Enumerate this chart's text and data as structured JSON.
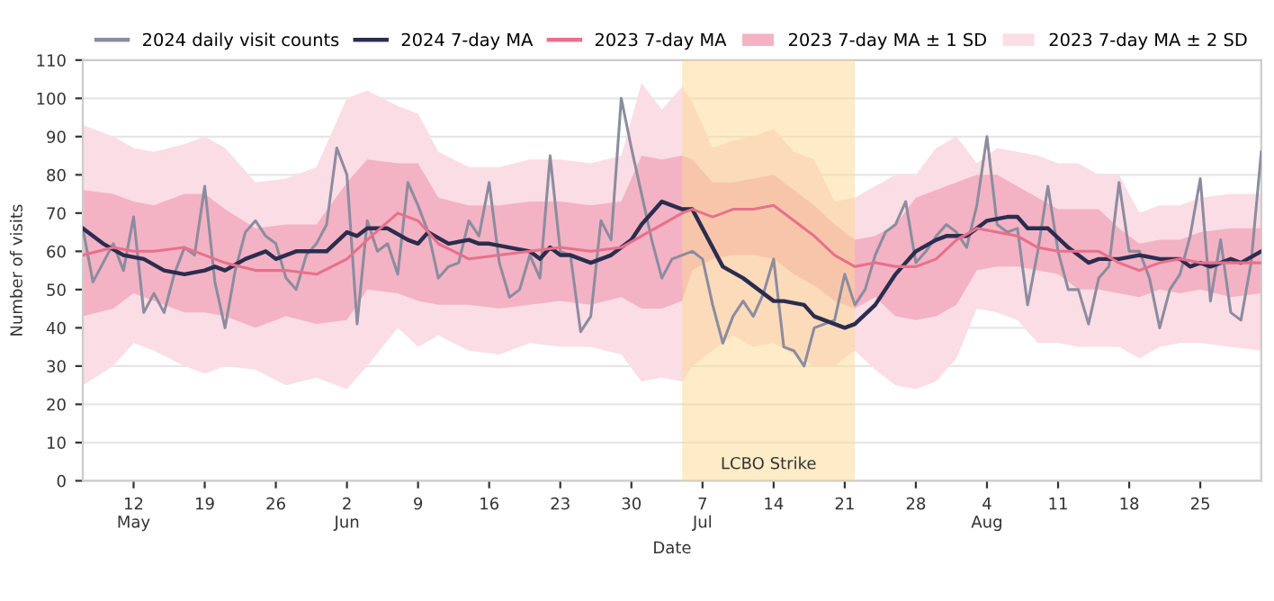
{
  "chart_data": {
    "type": "line",
    "xlabel": "Date",
    "ylabel": "Number of visits",
    "xlim": [
      "2024-05-07",
      "2024-08-31"
    ],
    "ylim": [
      0,
      110
    ],
    "yticks": [
      0,
      10,
      20,
      30,
      40,
      50,
      60,
      70,
      80,
      90,
      100,
      110
    ],
    "xticks": [
      {
        "value": "2024-05-12",
        "label": "12\nMay"
      },
      {
        "value": "2024-05-19",
        "label": "19"
      },
      {
        "value": "2024-05-26",
        "label": "26"
      },
      {
        "value": "2024-06-02",
        "label": "2\nJun"
      },
      {
        "value": "2024-06-09",
        "label": "9"
      },
      {
        "value": "2024-06-16",
        "label": "16"
      },
      {
        "value": "2024-06-23",
        "label": "23"
      },
      {
        "value": "2024-06-30",
        "label": "30"
      },
      {
        "value": "2024-07-07",
        "label": "7\nJul"
      },
      {
        "value": "2024-07-14",
        "label": "14"
      },
      {
        "value": "2024-07-21",
        "label": "21"
      },
      {
        "value": "2024-07-28",
        "label": "28"
      },
      {
        "value": "2024-08-04",
        "label": "4\nAug"
      },
      {
        "value": "2024-08-11",
        "label": "11"
      },
      {
        "value": "2024-08-18",
        "label": "18"
      },
      {
        "value": "2024-08-25",
        "label": "25"
      }
    ],
    "grid": "y",
    "legend": "top",
    "marker": "none",
    "line_style": "solid",
    "bands": [
      {
        "axis": "x",
        "from": "2024-07-05",
        "to": "2024-07-22",
        "label": "LCBO Strike",
        "color": "#fcd98f"
      }
    ],
    "series": [
      {
        "name": "2023 7-day MA ± 2 SD",
        "type": "line",
        "color": "#fbdde5",
        "x": [
          "2024-05-07",
          "2024-05-10",
          "2024-05-12",
          "2024-05-14",
          "2024-05-17",
          "2024-05-19",
          "2024-05-21",
          "2024-05-24",
          "2024-05-27",
          "2024-05-30",
          "2024-06-02",
          "2024-06-04",
          "2024-06-07",
          "2024-06-09",
          "2024-06-11",
          "2024-06-14",
          "2024-06-17",
          "2024-06-20",
          "2024-06-23",
          "2024-06-26",
          "2024-06-29",
          "2024-07-01",
          "2024-07-03",
          "2024-07-05",
          "2024-07-06",
          "2024-07-08",
          "2024-07-10",
          "2024-07-12",
          "2024-07-14",
          "2024-07-16",
          "2024-07-18",
          "2024-07-20",
          "2024-07-22",
          "2024-07-24",
          "2024-07-26",
          "2024-07-28",
          "2024-07-30",
          "2024-08-01",
          "2024-08-03",
          "2024-08-05",
          "2024-08-07",
          "2024-08-09",
          "2024-08-11",
          "2024-08-13",
          "2024-08-15",
          "2024-08-17",
          "2024-08-19",
          "2024-08-21",
          "2024-08-23",
          "2024-08-25",
          "2024-08-28",
          "2024-08-31"
        ],
        "lower": [
          25,
          30,
          36,
          34,
          30,
          28,
          30,
          29,
          25,
          27,
          24,
          30,
          40,
          35,
          38,
          34,
          33,
          36,
          35,
          35,
          33,
          26,
          27,
          26,
          30,
          34,
          38,
          35,
          36,
          33,
          30,
          30,
          34,
          29,
          25,
          24,
          26,
          32,
          45,
          44,
          42,
          36,
          36,
          35,
          35,
          35,
          32,
          35,
          36,
          36,
          35,
          34
        ],
        "upper": [
          93,
          90,
          87,
          86,
          88,
          90,
          87,
          78,
          79,
          82,
          100,
          102,
          98,
          96,
          86,
          82,
          82,
          84,
          84,
          83,
          85,
          104,
          97,
          103,
          99,
          87,
          89,
          90,
          92,
          86,
          84,
          73,
          74,
          77,
          80,
          80,
          87,
          90,
          83,
          87,
          86,
          85,
          83,
          83,
          80,
          80,
          70,
          72,
          72,
          74,
          75,
          75
        ],
        "values": [
          null,
          null,
          null,
          null,
          null,
          null,
          null,
          null,
          null,
          null,
          null,
          null,
          null,
          null,
          null,
          null,
          null,
          null,
          null,
          null,
          null,
          null,
          null,
          null,
          null,
          null,
          null,
          null,
          null,
          null,
          null,
          null,
          null,
          null,
          null,
          null,
          null,
          null,
          null,
          null,
          null,
          null,
          null,
          null,
          null,
          null,
          null,
          null,
          null,
          null,
          null,
          null
        ]
      },
      {
        "name": "2023 7-day MA ± 1 SD",
        "type": "line",
        "color": "#f3b3c4",
        "x": [
          "2024-05-07",
          "2024-05-10",
          "2024-05-12",
          "2024-05-14",
          "2024-05-17",
          "2024-05-19",
          "2024-05-21",
          "2024-05-24",
          "2024-05-27",
          "2024-05-30",
          "2024-06-02",
          "2024-06-04",
          "2024-06-07",
          "2024-06-09",
          "2024-06-11",
          "2024-06-14",
          "2024-06-17",
          "2024-06-20",
          "2024-06-23",
          "2024-06-26",
          "2024-06-29",
          "2024-07-01",
          "2024-07-03",
          "2024-07-05",
          "2024-07-06",
          "2024-07-08",
          "2024-07-10",
          "2024-07-12",
          "2024-07-14",
          "2024-07-16",
          "2024-07-18",
          "2024-07-20",
          "2024-07-22",
          "2024-07-24",
          "2024-07-26",
          "2024-07-28",
          "2024-07-30",
          "2024-08-01",
          "2024-08-03",
          "2024-08-05",
          "2024-08-07",
          "2024-08-09",
          "2024-08-11",
          "2024-08-13",
          "2024-08-15",
          "2024-08-17",
          "2024-08-19",
          "2024-08-21",
          "2024-08-23",
          "2024-08-25",
          "2024-08-28",
          "2024-08-31"
        ],
        "lower": [
          43,
          45,
          49,
          47,
          44,
          44,
          43,
          40,
          43,
          41,
          42,
          50,
          49,
          47,
          46,
          46,
          45,
          46,
          47,
          46,
          48,
          45,
          45,
          47,
          55,
          58,
          59,
          59,
          58,
          54,
          51,
          47,
          45,
          48,
          43,
          42,
          43,
          46,
          55,
          56,
          56,
          55,
          54,
          50,
          50,
          49,
          48,
          50,
          49,
          50,
          48,
          49
        ],
        "upper": [
          76,
          75,
          73,
          72,
          75,
          75,
          71,
          66,
          67,
          67,
          78,
          84,
          83,
          83,
          74,
          72,
          72,
          73,
          73,
          72,
          73,
          85,
          84,
          85,
          84,
          78,
          78,
          79,
          80,
          76,
          72,
          67,
          63,
          64,
          67,
          74,
          76,
          78,
          80,
          80,
          77,
          74,
          71,
          71,
          71,
          66,
          62,
          63,
          63,
          65,
          66,
          66
        ],
        "values": [
          null,
          null,
          null,
          null,
          null,
          null,
          null,
          null,
          null,
          null,
          null,
          null,
          null,
          null,
          null,
          null,
          null,
          null,
          null,
          null,
          null,
          null,
          null,
          null,
          null,
          null,
          null,
          null,
          null,
          null,
          null,
          null,
          null,
          null,
          null,
          null,
          null,
          null,
          null,
          null,
          null,
          null,
          null,
          null,
          null,
          null,
          null,
          null,
          null,
          null,
          null,
          null
        ]
      },
      {
        "name": "2024 daily visit counts",
        "type": "line",
        "color": "#8c8c9e",
        "x": [
          "2024-05-07",
          "2024-05-08",
          "2024-05-09",
          "2024-05-10",
          "2024-05-11",
          "2024-05-12",
          "2024-05-13",
          "2024-05-14",
          "2024-05-15",
          "2024-05-16",
          "2024-05-17",
          "2024-05-18",
          "2024-05-19",
          "2024-05-20",
          "2024-05-21",
          "2024-05-22",
          "2024-05-23",
          "2024-05-24",
          "2024-05-25",
          "2024-05-26",
          "2024-05-27",
          "2024-05-28",
          "2024-05-29",
          "2024-05-30",
          "2024-05-31",
          "2024-06-01",
          "2024-06-02",
          "2024-06-03",
          "2024-06-04",
          "2024-06-05",
          "2024-06-06",
          "2024-06-07",
          "2024-06-08",
          "2024-06-09",
          "2024-06-10",
          "2024-06-11",
          "2024-06-12",
          "2024-06-13",
          "2024-06-14",
          "2024-06-15",
          "2024-06-16",
          "2024-06-17",
          "2024-06-18",
          "2024-06-19",
          "2024-06-20",
          "2024-06-21",
          "2024-06-22",
          "2024-06-23",
          "2024-06-24",
          "2024-06-25",
          "2024-06-26",
          "2024-06-27",
          "2024-06-28",
          "2024-06-29",
          "2024-06-30",
          "2024-07-01",
          "2024-07-02",
          "2024-07-03",
          "2024-07-04",
          "2024-07-05",
          "2024-07-06",
          "2024-07-07",
          "2024-07-08",
          "2024-07-09",
          "2024-07-10",
          "2024-07-11",
          "2024-07-12",
          "2024-07-13",
          "2024-07-14",
          "2024-07-15",
          "2024-07-16",
          "2024-07-17",
          "2024-07-18",
          "2024-07-19",
          "2024-07-20",
          "2024-07-21",
          "2024-07-22",
          "2024-07-23",
          "2024-07-24",
          "2024-07-25",
          "2024-07-26",
          "2024-07-27",
          "2024-07-28",
          "2024-07-29",
          "2024-07-30",
          "2024-07-31",
          "2024-08-01",
          "2024-08-02",
          "2024-08-03",
          "2024-08-04",
          "2024-08-05",
          "2024-08-06",
          "2024-08-07",
          "2024-08-08",
          "2024-08-09",
          "2024-08-10",
          "2024-08-11",
          "2024-08-12",
          "2024-08-13",
          "2024-08-14",
          "2024-08-15",
          "2024-08-16",
          "2024-08-17",
          "2024-08-18",
          "2024-08-19",
          "2024-08-20",
          "2024-08-21",
          "2024-08-22",
          "2024-08-23",
          "2024-08-24",
          "2024-08-25",
          "2024-08-26",
          "2024-08-27",
          "2024-08-28",
          "2024-08-29",
          "2024-08-30",
          "2024-08-31"
        ],
        "values": [
          66,
          52,
          57,
          62,
          55,
          69,
          44,
          49,
          44,
          54,
          61,
          59,
          77,
          52,
          40,
          55,
          65,
          68,
          64,
          62,
          53,
          50,
          59,
          62,
          67,
          87,
          80,
          41,
          68,
          60,
          62,
          54,
          78,
          72,
          65,
          53,
          56,
          57,
          68,
          64,
          78,
          57,
          48,
          50,
          59,
          53,
          85,
          60,
          59,
          39,
          43,
          68,
          63,
          100,
          87,
          75,
          63,
          53,
          58,
          59,
          60,
          58,
          46,
          36,
          43,
          47,
          43,
          49,
          58,
          35,
          34,
          30,
          40,
          41,
          42,
          54,
          46,
          50,
          59,
          65,
          67,
          73,
          57,
          60,
          64,
          67,
          65,
          61,
          72,
          90,
          67,
          65,
          66,
          46,
          60,
          77,
          60,
          50,
          50,
          41,
          53,
          56,
          78,
          60,
          60,
          53,
          40,
          50,
          54,
          64,
          79,
          47,
          63,
          44,
          42,
          57,
          86
        ]
      },
      {
        "name": "2024 7-day MA",
        "type": "line",
        "color": "#2b2d4f",
        "x": [
          "2024-05-07",
          "2024-05-09",
          "2024-05-11",
          "2024-05-13",
          "2024-05-15",
          "2024-05-17",
          "2024-05-19",
          "2024-05-20",
          "2024-05-21",
          "2024-05-23",
          "2024-05-25",
          "2024-05-26",
          "2024-05-28",
          "2024-05-30",
          "2024-05-31",
          "2024-06-02",
          "2024-06-03",
          "2024-06-04",
          "2024-06-06",
          "2024-06-08",
          "2024-06-09",
          "2024-06-10",
          "2024-06-12",
          "2024-06-14",
          "2024-06-15",
          "2024-06-16",
          "2024-06-18",
          "2024-06-20",
          "2024-06-21",
          "2024-06-22",
          "2024-06-23",
          "2024-06-24",
          "2024-06-26",
          "2024-06-28",
          "2024-06-30",
          "2024-07-01",
          "2024-07-03",
          "2024-07-05",
          "2024-07-06",
          "2024-07-07",
          "2024-07-09",
          "2024-07-11",
          "2024-07-12",
          "2024-07-14",
          "2024-07-15",
          "2024-07-17",
          "2024-07-18",
          "2024-07-20",
          "2024-07-21",
          "2024-07-22",
          "2024-07-24",
          "2024-07-26",
          "2024-07-28",
          "2024-07-30",
          "2024-07-31",
          "2024-08-02",
          "2024-08-04",
          "2024-08-06",
          "2024-08-07",
          "2024-08-08",
          "2024-08-10",
          "2024-08-12",
          "2024-08-14",
          "2024-08-15",
          "2024-08-17",
          "2024-08-19",
          "2024-08-21",
          "2024-08-23",
          "2024-08-24",
          "2024-08-25",
          "2024-08-26",
          "2024-08-28",
          "2024-08-29",
          "2024-08-31"
        ],
        "values": [
          66,
          62,
          59,
          58,
          55,
          54,
          55,
          56,
          55,
          58,
          60,
          58,
          60,
          60,
          60,
          65,
          64,
          66,
          66,
          63,
          62,
          65,
          62,
          63,
          62,
          62,
          61,
          60,
          58,
          61,
          59,
          59,
          57,
          59,
          63,
          67,
          73,
          71,
          71,
          66,
          56,
          53,
          51,
          47,
          47,
          46,
          43,
          41,
          40,
          41,
          46,
          54,
          60,
          63,
          64,
          64,
          68,
          69,
          69,
          66,
          66,
          61,
          57,
          58,
          58,
          59,
          58,
          58,
          56,
          57,
          56,
          58,
          57,
          60
        ]
      },
      {
        "name": "2023 7-day MA",
        "type": "line",
        "color": "#e8708a",
        "x": [
          "2024-05-07",
          "2024-05-10",
          "2024-05-12",
          "2024-05-14",
          "2024-05-17",
          "2024-05-19",
          "2024-05-21",
          "2024-05-24",
          "2024-05-27",
          "2024-05-30",
          "2024-06-02",
          "2024-06-04",
          "2024-06-07",
          "2024-06-09",
          "2024-06-11",
          "2024-06-14",
          "2024-06-17",
          "2024-06-20",
          "2024-06-23",
          "2024-06-26",
          "2024-06-29",
          "2024-07-01",
          "2024-07-03",
          "2024-07-05",
          "2024-07-06",
          "2024-07-08",
          "2024-07-10",
          "2024-07-12",
          "2024-07-14",
          "2024-07-16",
          "2024-07-18",
          "2024-07-20",
          "2024-07-22",
          "2024-07-24",
          "2024-07-26",
          "2024-07-28",
          "2024-07-30",
          "2024-08-01",
          "2024-08-03",
          "2024-08-05",
          "2024-08-07",
          "2024-08-09",
          "2024-08-11",
          "2024-08-13",
          "2024-08-15",
          "2024-08-17",
          "2024-08-19",
          "2024-08-21",
          "2024-08-23",
          "2024-08-25",
          "2024-08-28",
          "2024-08-31"
        ],
        "values": [
          59,
          61,
          60,
          60,
          61,
          59,
          57,
          55,
          55,
          54,
          58,
          63,
          70,
          68,
          62,
          58,
          59,
          60,
          61,
          60,
          61,
          64,
          67,
          70,
          71,
          69,
          71,
          71,
          72,
          68,
          64,
          59,
          56,
          57,
          56,
          56,
          58,
          63,
          66,
          65,
          64,
          61,
          60,
          60,
          60,
          57,
          55,
          57,
          58,
          57,
          57,
          57
        ]
      }
    ]
  }
}
